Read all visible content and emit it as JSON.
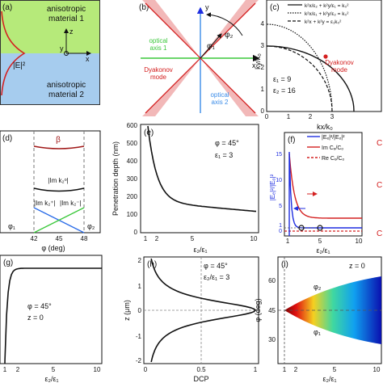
{
  "panels": {
    "a": {
      "label": "(a)",
      "top_text": [
        "anisotropic",
        "material 1"
      ],
      "bottom_text": [
        "anisotropic",
        "material 2"
      ],
      "axis_z": "z",
      "axis_y": "y",
      "axis_x": "x",
      "curve_label": "|E|²",
      "colors": {
        "top": "#b6ea7a",
        "bottom": "#a6ccee",
        "curve": "#d42020"
      }
    },
    "b": {
      "label": "(b)",
      "axis_y": "y",
      "axis_x": "x",
      "phi2": "φ₂",
      "phi1": "φ₁",
      "optical_axis_1": [
        "optical",
        "axis 1"
      ],
      "optical_axis_2": [
        "optical",
        "axis 2"
      ],
      "dyakonov_mode": [
        "Dyakonov",
        "mode"
      ],
      "colors": {
        "axis1": "#3cc83c",
        "axis2": "#3a8ce8",
        "mode": "#d42020",
        "wedge": "#f2b8b8"
      }
    },
    "c": {
      "label": "(c)",
      "legend": [
        "k²x/ε₂ + k²y/ε₁ = k₀²",
        "k²x/ε₁ + k²y/ε₂ = k₀²",
        "k²x + k²y = ε₁k₀²"
      ],
      "mode_label": [
        "Dyakonov",
        "mode"
      ],
      "eps1": "ε₁ = 9",
      "eps2": "ε₂ = 16",
      "ylabel": "ky/k₀",
      "xlabel": "kx/k₀",
      "xticks": [
        "0",
        "1",
        "2",
        "3"
      ],
      "yticks": [
        "0",
        "1",
        "2",
        "3",
        "4"
      ]
    },
    "d": {
      "label": "(d)",
      "beta": "β",
      "imk0": "|Im k₂ᵒ|",
      "imkp": "|Im k₂⁺|",
      "imkm": "|Im k₂⁻|",
      "phi1": "φ₁",
      "phi2": "φ₂",
      "xlabel": "φ (deg)",
      "xticks": [
        "42",
        "45",
        "48"
      ]
    },
    "e": {
      "label": "(e)",
      "phi": "φ = 45°",
      "eps": "ε₁ = 3",
      "ylabel": "Penetration depth (nm)",
      "xlabel": "ε₂/ε₁",
      "yticks": [
        "0",
        "100",
        "200",
        "300",
        "400",
        "500",
        "600"
      ],
      "xticks": [
        "1",
        "2",
        "5",
        "10"
      ]
    },
    "f": {
      "label": "(f)",
      "legend": [
        "|Eₑ|²/|Eₒ|²",
        "Im Cₑ/Cₒ",
        "Re Cₑ/Cₒ"
      ],
      "ylabel": "|Eₑ|²/|Eₒ|²",
      "ylabel_right": "C",
      "xlabel": "ε₂/ε₁",
      "xticks": [
        "1",
        "5",
        "10"
      ],
      "yticks": [
        "0",
        "1",
        "5",
        "10",
        "15"
      ],
      "colors": {
        "blue": "#1f2ee0",
        "red": "#d42020"
      }
    },
    "g": {
      "label": "(g)",
      "phi": "φ = 45°",
      "z": "z = 0",
      "xlabel": "ε₂/ε₁",
      "xticks": [
        "1",
        "2",
        "5",
        "10"
      ]
    },
    "h": {
      "label": "(h)",
      "phi": "φ = 45°",
      "eps": "ε₂/ε₁ = 3",
      "ylabel": "z (μm)",
      "xlabel": "DCP",
      "yticks": [
        "2",
        "1",
        "0",
        "-1",
        "-2"
      ],
      "xticks": [
        "0",
        "0.5",
        "1"
      ]
    },
    "i": {
      "label": "(i)",
      "z": "z = 0",
      "phi2": "φ₂",
      "phi1": "φ₁",
      "ylabel": "φ (deg)",
      "xlabel": "ε₂/ε₁",
      "yticks": [
        "60",
        "45",
        "30"
      ],
      "xticks": [
        "1",
        "2",
        "5",
        "10"
      ]
    }
  }
}
